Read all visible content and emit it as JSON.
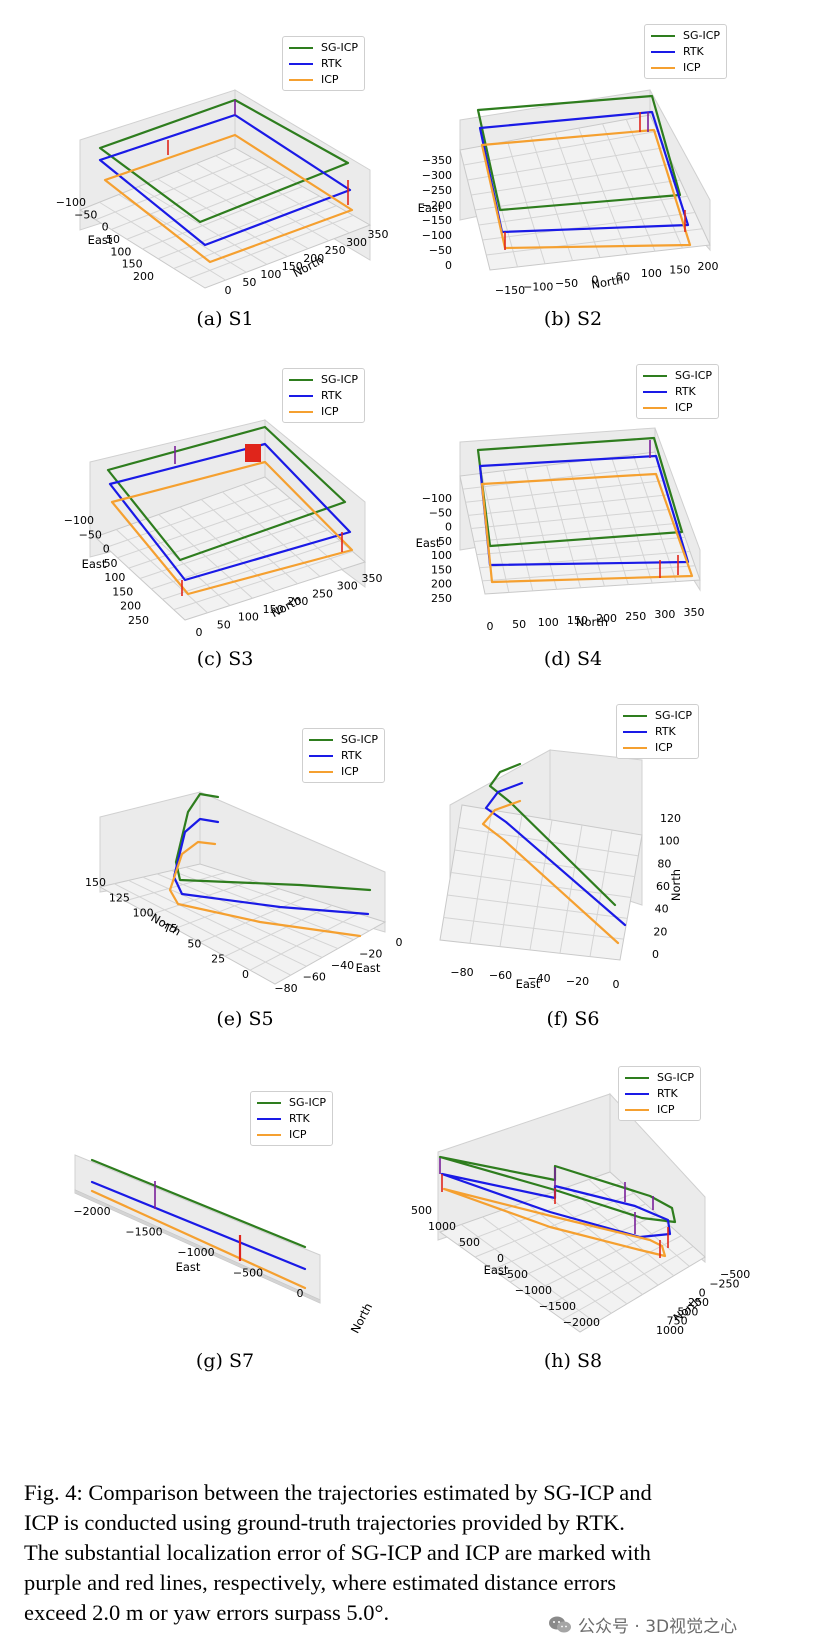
{
  "legend": [
    {
      "label": "SG-ICP",
      "color": "#2e7d1e"
    },
    {
      "label": "RTK",
      "color": "#1a1ae6"
    },
    {
      "label": "ICP",
      "color": "#f5a030"
    }
  ],
  "error_colors": {
    "sg_icp": "#7a1f9a",
    "icp": "#e0251b"
  },
  "panels": [
    {
      "caption": "(a)  S1",
      "east_label": "East",
      "north_label": "North",
      "east_ticks": [
        "−100",
        "−50",
        "0",
        "50",
        "100",
        "150",
        "200"
      ],
      "north_ticks": [
        "0",
        "50",
        "100",
        "150",
        "200",
        "250",
        "300",
        "350"
      ]
    },
    {
      "caption": "(b)  S2",
      "east_label": "East",
      "north_label": "North",
      "east_ticks": [
        "−350",
        "−300",
        "−250",
        "−200",
        "−150",
        "−100",
        "−50",
        "0"
      ],
      "north_ticks": [
        "−150",
        "−100",
        "−50",
        "0",
        "50",
        "100",
        "150",
        "200"
      ]
    },
    {
      "caption": "(c)  S3",
      "east_label": "East",
      "north_label": "North",
      "east_ticks": [
        "−100",
        "−50",
        "0",
        "50",
        "100",
        "150",
        "200",
        "250"
      ],
      "north_ticks": [
        "0",
        "50",
        "100",
        "150",
        "200",
        "250",
        "300",
        "350"
      ]
    },
    {
      "caption": "(d)  S4",
      "east_label": "East",
      "north_label": "North",
      "east_ticks": [
        "−100",
        "−50",
        "0",
        "50",
        "100",
        "150",
        "200",
        "250"
      ],
      "north_ticks": [
        "0",
        "50",
        "100",
        "150",
        "200",
        "250",
        "300",
        "350"
      ]
    },
    {
      "caption": "(e)  S5",
      "east_label": "East",
      "north_label": "North",
      "north_ticks": [
        "150",
        "125",
        "100",
        "75",
        "50",
        "25",
        "0"
      ],
      "east_ticks": [
        "−80",
        "−60",
        "−40",
        "−20",
        "0"
      ]
    },
    {
      "caption": "(f)  S6",
      "east_label": "East",
      "north_label": "North",
      "east_ticks": [
        "−80",
        "−60",
        "−40",
        "−20",
        "0"
      ],
      "north_ticks": [
        "120",
        "100",
        "80",
        "60",
        "40",
        "20",
        "0"
      ]
    },
    {
      "caption": "(g)  S7",
      "east_label": "East",
      "north_label": "North",
      "east_ticks": [
        "−2000",
        "−1500",
        "−1000",
        "−500",
        "0"
      ],
      "north_ticks": []
    },
    {
      "caption": "(h)  S8",
      "east_label": "East",
      "north_label": "North",
      "east_ticks": [
        "1500",
        "1000",
        "500",
        "0",
        "−500",
        "−1000",
        "−1500",
        "−2000"
      ],
      "north_ticks": [
        "−500",
        "−250",
        "0",
        "250",
        "500",
        "750",
        "1000"
      ]
    }
  ],
  "figure_caption_lines": [
    "Fig. 4: Comparison between the trajectories estimated by SG-ICP and",
    "ICP is conducted using ground-truth trajectories provided by RTK.",
    "The substantial localization error of SG-ICP and ICP are marked with",
    "purple and red lines, respectively, where estimated distance errors",
    "exceed 2.0 m or yaw errors surpass 5.0°."
  ],
  "watermark": "公众号 · 3D视觉之心"
}
